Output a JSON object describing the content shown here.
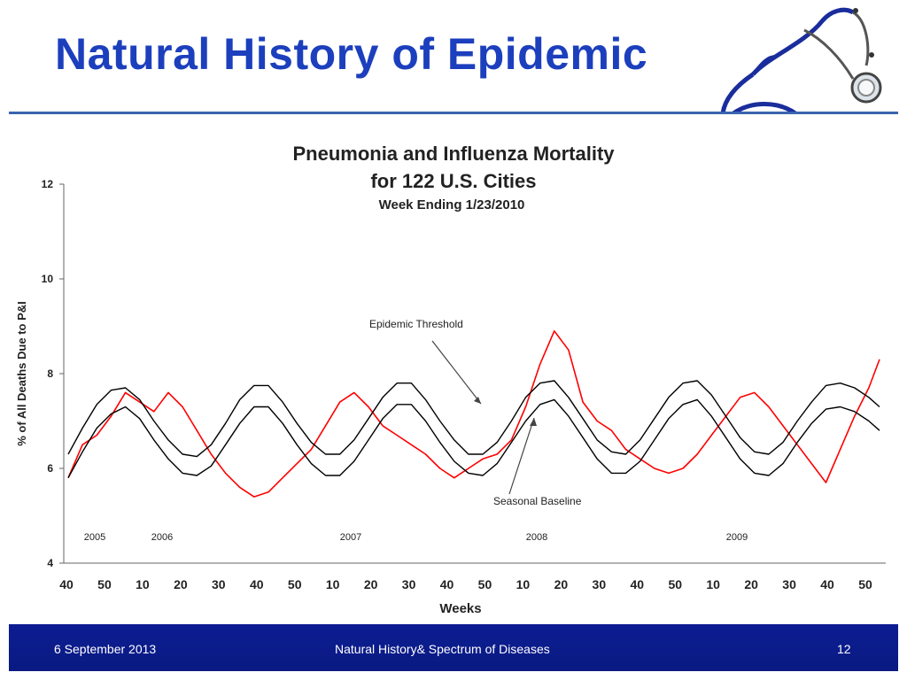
{
  "slide": {
    "title": "Natural History of Epidemic",
    "footer_date": "6 September 2013",
    "footer_center": "Natural History& Spectrum of Diseases",
    "page_number": "12",
    "title_color": "#1c3fbd",
    "footer_color": "#0c1d93",
    "decoration_icon": "stethoscope-icon"
  },
  "chart_data": {
    "type": "line",
    "title": "Pneumonia and Influenza Mortality",
    "subtitle": "for 122 U.S. Cities",
    "subtitle2": "Week Ending  1/23/2010",
    "xlabel": "Weeks",
    "ylabel": "% of All Deaths Due to P&I",
    "ylim": [
      4,
      12
    ],
    "yticks": [
      4,
      6,
      8,
      10,
      12
    ],
    "xticks": [
      "40",
      "50",
      "10",
      "20",
      "30",
      "40",
      "50",
      "10",
      "20",
      "30",
      "40",
      "50",
      "10",
      "20",
      "30",
      "40",
      "50",
      "10",
      "20",
      "30",
      "40",
      "50"
    ],
    "year_labels": [
      "2005",
      "2006",
      "2007",
      "2008",
      "2009"
    ],
    "annotations": [
      "Epidemic Threshold",
      "Seasonal Baseline"
    ],
    "series": [
      {
        "color": "#ff0000",
        "x": [
          0,
          4,
          8,
          12,
          16,
          20,
          24,
          28,
          32,
          36,
          40,
          44,
          48,
          52,
          56,
          60,
          64,
          68,
          72,
          76,
          80,
          84,
          88,
          92,
          96,
          100,
          104,
          108,
          112,
          116,
          120,
          124,
          128,
          132,
          136,
          140,
          144,
          148,
          152,
          156,
          160,
          164,
          168,
          172,
          176,
          180,
          184,
          188,
          192,
          196,
          200,
          204,
          208,
          212,
          216,
          220,
          224,
          227
        ],
        "y": [
          5.8,
          6.5,
          6.7,
          7.1,
          7.6,
          7.4,
          7.2,
          7.6,
          7.3,
          6.8,
          6.3,
          5.9,
          5.6,
          5.4,
          5.5,
          5.8,
          6.1,
          6.4,
          6.9,
          7.4,
          7.6,
          7.3,
          6.9,
          6.7,
          6.5,
          6.3,
          6.0,
          5.8,
          6.0,
          6.2,
          6.3,
          6.6,
          7.3,
          8.2,
          8.9,
          8.5,
          7.4,
          7.0,
          6.8,
          6.4,
          6.2,
          6.0,
          5.9,
          6.0,
          6.3,
          6.7,
          7.1,
          7.5,
          7.6,
          7.3,
          6.9,
          6.5,
          6.1,
          5.7,
          6.4,
          7.1,
          7.7,
          8.3
        ]
      },
      {
        "name": "Epidemic Threshold",
        "color": "#000000",
        "x": [
          0,
          4,
          8,
          12,
          16,
          20,
          24,
          28,
          32,
          36,
          40,
          44,
          48,
          52,
          56,
          60,
          64,
          68,
          72,
          76,
          80,
          84,
          88,
          92,
          96,
          100,
          104,
          108,
          112,
          116,
          120,
          124,
          128,
          132,
          136,
          140,
          144,
          148,
          152,
          156,
          160,
          164,
          168,
          172,
          176,
          180,
          184,
          188,
          192,
          196,
          200,
          204,
          208,
          212,
          216,
          220,
          224,
          227
        ],
        "y": [
          6.3,
          6.85,
          7.35,
          7.65,
          7.7,
          7.45,
          7.0,
          6.6,
          6.3,
          6.25,
          6.5,
          6.95,
          7.45,
          7.75,
          7.75,
          7.4,
          6.95,
          6.55,
          6.3,
          6.3,
          6.6,
          7.05,
          7.5,
          7.8,
          7.8,
          7.45,
          7.0,
          6.6,
          6.3,
          6.3,
          6.55,
          7.0,
          7.5,
          7.8,
          7.85,
          7.5,
          7.05,
          6.6,
          6.35,
          6.3,
          6.6,
          7.05,
          7.5,
          7.8,
          7.85,
          7.55,
          7.1,
          6.65,
          6.35,
          6.3,
          6.55,
          7.0,
          7.4,
          7.75,
          7.8,
          7.7,
          7.5,
          7.3
        ]
      },
      {
        "name": "Seasonal Baseline",
        "color": "#000000",
        "x": [
          0,
          4,
          8,
          12,
          16,
          20,
          24,
          28,
          32,
          36,
          40,
          44,
          48,
          52,
          56,
          60,
          64,
          68,
          72,
          76,
          80,
          84,
          88,
          92,
          96,
          100,
          104,
          108,
          112,
          116,
          120,
          124,
          128,
          132,
          136,
          140,
          144,
          148,
          152,
          156,
          160,
          164,
          168,
          172,
          176,
          180,
          184,
          188,
          192,
          196,
          200,
          204,
          208,
          212,
          216,
          220,
          224,
          227
        ],
        "y": [
          5.8,
          6.35,
          6.85,
          7.15,
          7.3,
          7.05,
          6.6,
          6.2,
          5.9,
          5.85,
          6.05,
          6.5,
          6.95,
          7.3,
          7.3,
          6.95,
          6.5,
          6.1,
          5.85,
          5.85,
          6.15,
          6.6,
          7.05,
          7.35,
          7.35,
          7.0,
          6.55,
          6.15,
          5.9,
          5.85,
          6.1,
          6.55,
          7.0,
          7.35,
          7.45,
          7.1,
          6.65,
          6.2,
          5.9,
          5.9,
          6.15,
          6.6,
          7.05,
          7.35,
          7.45,
          7.1,
          6.65,
          6.2,
          5.9,
          5.85,
          6.1,
          6.55,
          6.95,
          7.25,
          7.3,
          7.2,
          7.0,
          6.8
        ]
      }
    ],
    "grid": false,
    "legend": "none"
  }
}
